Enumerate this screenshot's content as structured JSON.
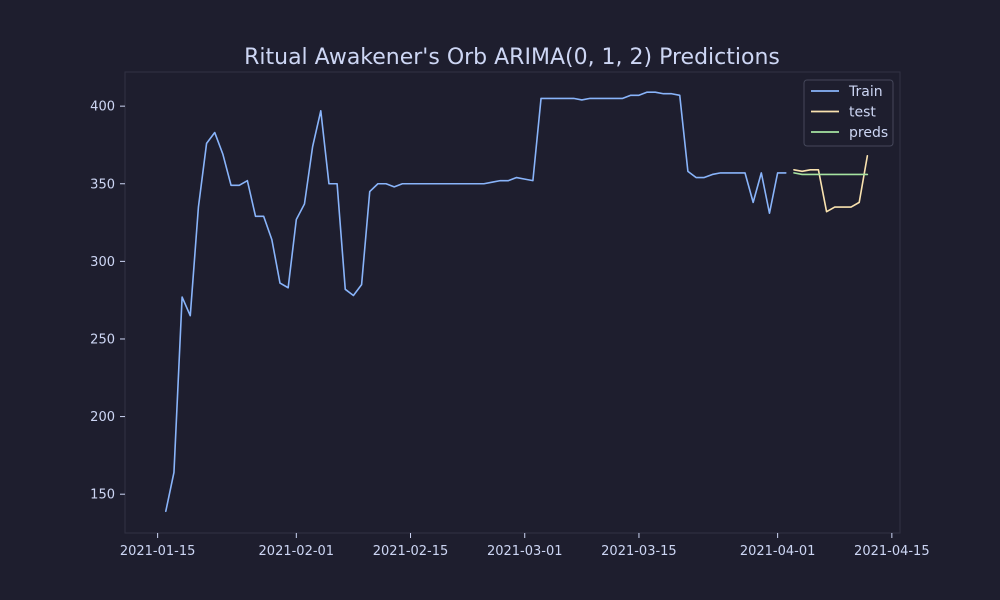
{
  "chart_data": {
    "type": "line",
    "title": "Ritual Awakener's Orb ARIMA(0, 1, 2) Predictions",
    "xlabel": "",
    "ylabel": "",
    "x_axis_type": "date",
    "xlim": [
      "2021-01-11",
      "2021-04-16"
    ],
    "ylim": [
      125,
      422
    ],
    "x_ticks": [
      "2021-01-15",
      "2021-02-01",
      "2021-02-15",
      "2021-03-01",
      "2021-03-15",
      "2021-04-01",
      "2021-04-15"
    ],
    "y_ticks": [
      150,
      200,
      250,
      300,
      350,
      400
    ],
    "grid": false,
    "legend_position": "top-right",
    "series": [
      {
        "name": "Train",
        "color": "#89b4fa",
        "x": [
          "2021-01-16",
          "2021-01-17",
          "2021-01-18",
          "2021-01-19",
          "2021-01-20",
          "2021-01-21",
          "2021-01-22",
          "2021-01-23",
          "2021-01-24",
          "2021-01-25",
          "2021-01-26",
          "2021-01-27",
          "2021-01-28",
          "2021-01-29",
          "2021-01-30",
          "2021-01-31",
          "2021-02-01",
          "2021-02-02",
          "2021-02-03",
          "2021-02-04",
          "2021-02-05",
          "2021-02-06",
          "2021-02-07",
          "2021-02-08",
          "2021-02-09",
          "2021-02-10",
          "2021-02-11",
          "2021-02-12",
          "2021-02-13",
          "2021-02-14",
          "2021-02-15",
          "2021-02-16",
          "2021-02-17",
          "2021-02-18",
          "2021-02-19",
          "2021-02-20",
          "2021-02-21",
          "2021-02-22",
          "2021-02-23",
          "2021-02-24",
          "2021-02-25",
          "2021-02-26",
          "2021-02-27",
          "2021-02-28",
          "2021-03-01",
          "2021-03-02",
          "2021-03-03",
          "2021-03-04",
          "2021-03-05",
          "2021-03-06",
          "2021-03-07",
          "2021-03-08",
          "2021-03-09",
          "2021-03-10",
          "2021-03-11",
          "2021-03-12",
          "2021-03-13",
          "2021-03-14",
          "2021-03-15",
          "2021-03-16",
          "2021-03-17",
          "2021-03-18",
          "2021-03-19",
          "2021-03-20",
          "2021-03-21",
          "2021-03-22",
          "2021-03-23",
          "2021-03-24",
          "2021-03-25",
          "2021-03-26",
          "2021-03-27",
          "2021-03-28",
          "2021-03-29",
          "2021-03-30",
          "2021-03-31",
          "2021-04-01",
          "2021-04-02"
        ],
        "values": [
          139,
          164,
          277,
          265,
          335,
          376,
          383,
          369,
          349,
          349,
          352,
          329,
          329,
          314,
          286,
          283,
          327,
          337,
          374,
          397,
          350,
          350,
          282,
          278,
          285,
          345,
          350,
          350,
          348,
          350,
          350,
          350,
          350,
          350,
          350,
          350,
          350,
          350,
          350,
          350,
          351,
          352,
          352,
          354,
          353,
          352,
          405,
          405,
          405,
          405,
          405,
          404,
          405,
          405,
          405,
          405,
          405,
          407,
          407,
          409,
          409,
          408,
          408,
          407,
          358,
          354,
          354,
          356,
          357,
          357,
          357,
          357,
          338,
          357,
          331,
          357,
          357
        ]
      },
      {
        "name": "test",
        "color": "#f9e2af",
        "x": [
          "2021-04-03",
          "2021-04-04",
          "2021-04-05",
          "2021-04-06",
          "2021-04-07",
          "2021-04-08",
          "2021-04-09",
          "2021-04-10",
          "2021-04-11",
          "2021-04-12"
        ],
        "values": [
          359,
          358,
          359,
          359,
          332,
          335,
          335,
          335,
          338,
          368
        ]
      },
      {
        "name": "preds",
        "color": "#a6e3a1",
        "x": [
          "2021-04-03",
          "2021-04-04",
          "2021-04-05",
          "2021-04-06",
          "2021-04-07",
          "2021-04-08",
          "2021-04-09",
          "2021-04-10",
          "2021-04-11",
          "2021-04-12"
        ],
        "values": [
          357,
          356,
          356,
          356,
          356,
          356,
          356,
          356,
          356,
          356
        ]
      }
    ]
  }
}
